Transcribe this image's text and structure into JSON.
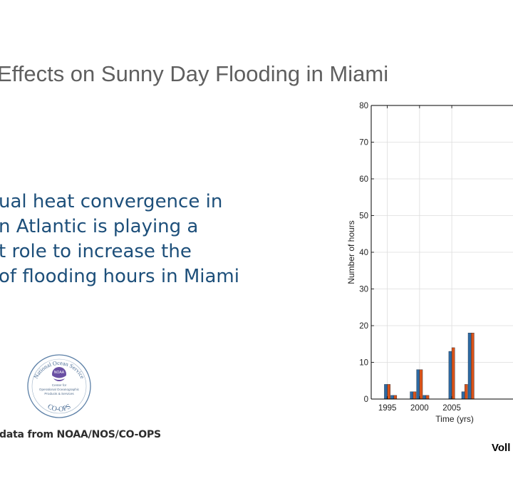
{
  "slide": {
    "title": "Effects on Sunny Day Flooding in Miami",
    "body_lines": [
      "ual heat convergence in",
      "n Atlantic is playing a",
      "t role to increase the",
      "of flooding hours in Miami"
    ],
    "credit": "data from NOAA/NOS/CO-OPS",
    "author": "Voll",
    "logo": {
      "ring_text": "National Ocean Service",
      "badge_text": "NOAA",
      "center_lines": [
        "Center for",
        "Operational Oceanographic",
        "Products & Services"
      ],
      "bottom_text": "CO-OPS"
    }
  },
  "colors": {
    "title": "#5f5f5f",
    "body": "#1d4f7a",
    "series_blue": "#2e6aa3",
    "series_orange": "#d95319"
  },
  "chart_data": {
    "type": "bar",
    "xlabel": "Time (yrs)",
    "ylabel": "Number of hours",
    "ylim": [
      0,
      80
    ],
    "xlim": [
      1992.5,
      2014.5
    ],
    "grid": true,
    "yticks": [
      0,
      10,
      20,
      30,
      40,
      50,
      60,
      70,
      80
    ],
    "xticks": [
      1995,
      2000,
      2005
    ],
    "x": [
      1994,
      1995,
      1996,
      1997,
      1998,
      1999,
      2000,
      2001,
      2002,
      2003,
      2004,
      2005,
      2006,
      2007,
      2008,
      2009,
      2010,
      2011,
      2012,
      2013,
      2014
    ],
    "series": [
      {
        "values": [
          0,
          4,
          1,
          0,
          0,
          2,
          8,
          1,
          0,
          0,
          0,
          13,
          0,
          2,
          18,
          0,
          0,
          0,
          0,
          0,
          0
        ]
      },
      {
        "values": [
          0,
          4,
          1,
          0,
          0,
          2,
          8,
          1,
          0,
          0,
          0,
          14,
          0,
          4,
          18,
          0,
          0,
          0,
          0,
          0,
          0
        ]
      }
    ]
  }
}
